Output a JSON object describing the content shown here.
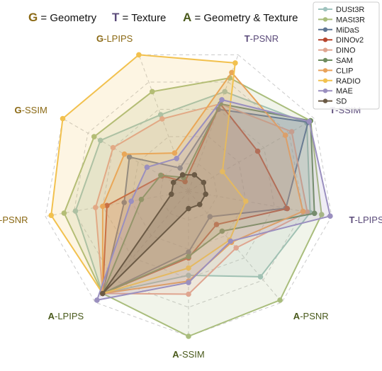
{
  "header": {
    "keys": [
      {
        "letter": "G",
        "text": " = Geometry",
        "color": "#8B6914"
      },
      {
        "letter": "T",
        "text": " = Texture",
        "color": "#5B4B7A"
      },
      {
        "letter": "A",
        "text": " = Geometry & Texture",
        "color": "#4A5A1C"
      }
    ]
  },
  "chart_data": {
    "type": "radar",
    "axes": [
      {
        "prefix": "T",
        "name": "-PSNR",
        "color": "#5B4B7A"
      },
      {
        "prefix": "T",
        "name": "-SSIM",
        "color": "#5B4B7A"
      },
      {
        "prefix": "T",
        "name": "-LPIPS",
        "color": "#5B4B7A"
      },
      {
        "prefix": "A",
        "name": "-PSNR",
        "color": "#4A5A1C"
      },
      {
        "prefix": "A",
        "name": "-SSIM",
        "color": "#4A5A1C"
      },
      {
        "prefix": "A",
        "name": "-LPIPS",
        "color": "#4A5A1C"
      },
      {
        "prefix": "G",
        "name": "-PSNR",
        "color": "#8B6914"
      },
      {
        "prefix": "G",
        "name": "-SSIM",
        "color": "#8B6914"
      },
      {
        "prefix": "G",
        "name": "-LPIPS",
        "color": "#8B6914"
      }
    ],
    "rings": 5,
    "range": [
      0,
      1
    ],
    "series": [
      {
        "name": "DUSt3R",
        "color": "#9FC3BE",
        "values": [
          0.73,
          0.94,
          0.85,
          0.77,
          0.58,
          0.92,
          0.79,
          0.7,
          0.56
        ]
      },
      {
        "name": "MASt3R",
        "color": "#A9BD7C",
        "values": [
          0.83,
          0.97,
          0.93,
          0.98,
          1.0,
          0.92,
          0.87,
          0.75,
          0.73
        ]
      },
      {
        "name": "MiDaS",
        "color": "#5E7593",
        "values": [
          0.6,
          0.95,
          0.68,
          0.23,
          0.42,
          0.92,
          0.45,
          0.47,
          0.17
        ]
      },
      {
        "name": "DINOv2",
        "color": "#B6462E",
        "values": [
          0.64,
          0.55,
          0.69,
          0.3,
          0.46,
          0.92,
          0.57,
          0.21,
          0.07
        ]
      },
      {
        "name": "DINO",
        "color": "#DFA590",
        "values": [
          0.64,
          0.82,
          0.83,
          0.51,
          0.71,
          0.92,
          0.65,
          0.6,
          0.53
        ]
      },
      {
        "name": "SAM",
        "color": "#6E8C5E",
        "values": [
          0.64,
          0.97,
          0.88,
          0.36,
          0.45,
          0.92,
          0.33,
          0.22,
          0.1
        ]
      },
      {
        "name": "CLIP",
        "color": "#E8A25A",
        "values": [
          0.87,
          0.77,
          0.8,
          0.46,
          0.62,
          0.92,
          0.6,
          0.51,
          0.28
        ]
      },
      {
        "name": "RADIO",
        "color": "#F2C14E",
        "values": [
          0.94,
          0.27,
          0.4,
          0.44,
          0.53,
          0.92,
          0.96,
          1.0,
          1.0
        ]
      },
      {
        "name": "MAE",
        "color": "#9A8FBF",
        "values": [
          0.67,
          0.96,
          0.99,
          0.45,
          0.63,
          0.98,
          0.4,
          0.33,
          0.24
        ]
      },
      {
        "name": "SD",
        "color": "#6B5A45",
        "values": [
          0.12,
          0.12,
          0.12,
          0.12,
          0.12,
          0.92,
          0.12,
          0.12,
          0.12
        ]
      }
    ],
    "grid": true,
    "legend_position": "top-right"
  }
}
